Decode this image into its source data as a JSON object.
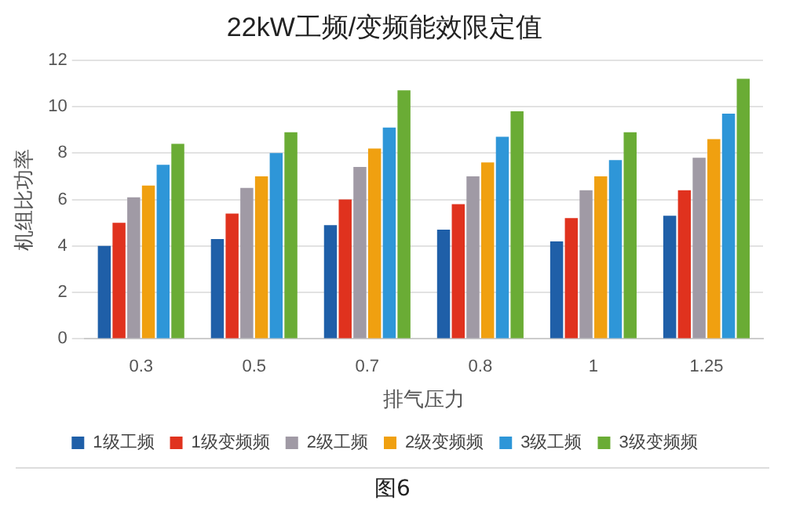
{
  "chart_data": {
    "type": "bar",
    "title": "22kW工频/变频能效限定值",
    "xlabel": "排气压力",
    "ylabel": "机组比功率",
    "categories": [
      "0.3",
      "0.5",
      "0.7",
      "0.8",
      "1",
      "1.25"
    ],
    "series": [
      {
        "name": "1级工频",
        "color": "#1f5fa8",
        "values": [
          4.0,
          4.3,
          4.9,
          4.7,
          4.2,
          5.3
        ]
      },
      {
        "name": "1级变频频",
        "color": "#e0321e",
        "values": [
          5.0,
          5.4,
          6.0,
          5.8,
          5.2,
          6.4
        ]
      },
      {
        "name": "2级工频",
        "color": "#a09aa5",
        "values": [
          6.1,
          6.5,
          7.4,
          7.0,
          6.4,
          7.8
        ]
      },
      {
        "name": "2级变频频",
        "color": "#f0a010",
        "values": [
          6.6,
          7.0,
          8.2,
          7.6,
          7.0,
          8.6
        ]
      },
      {
        "name": "3级工频",
        "color": "#2e96d8",
        "values": [
          7.5,
          8.0,
          9.1,
          8.7,
          7.7,
          9.7
        ]
      },
      {
        "name": "3级变频频",
        "color": "#6aac35",
        "values": [
          8.4,
          8.9,
          10.7,
          9.8,
          8.9,
          11.2
        ]
      }
    ],
    "ylim": [
      0,
      12
    ],
    "yticks": [
      0,
      2,
      4,
      6,
      8,
      10,
      12
    ],
    "grid": "y",
    "legend": "bottom",
    "annotations": [
      "图6"
    ]
  }
}
